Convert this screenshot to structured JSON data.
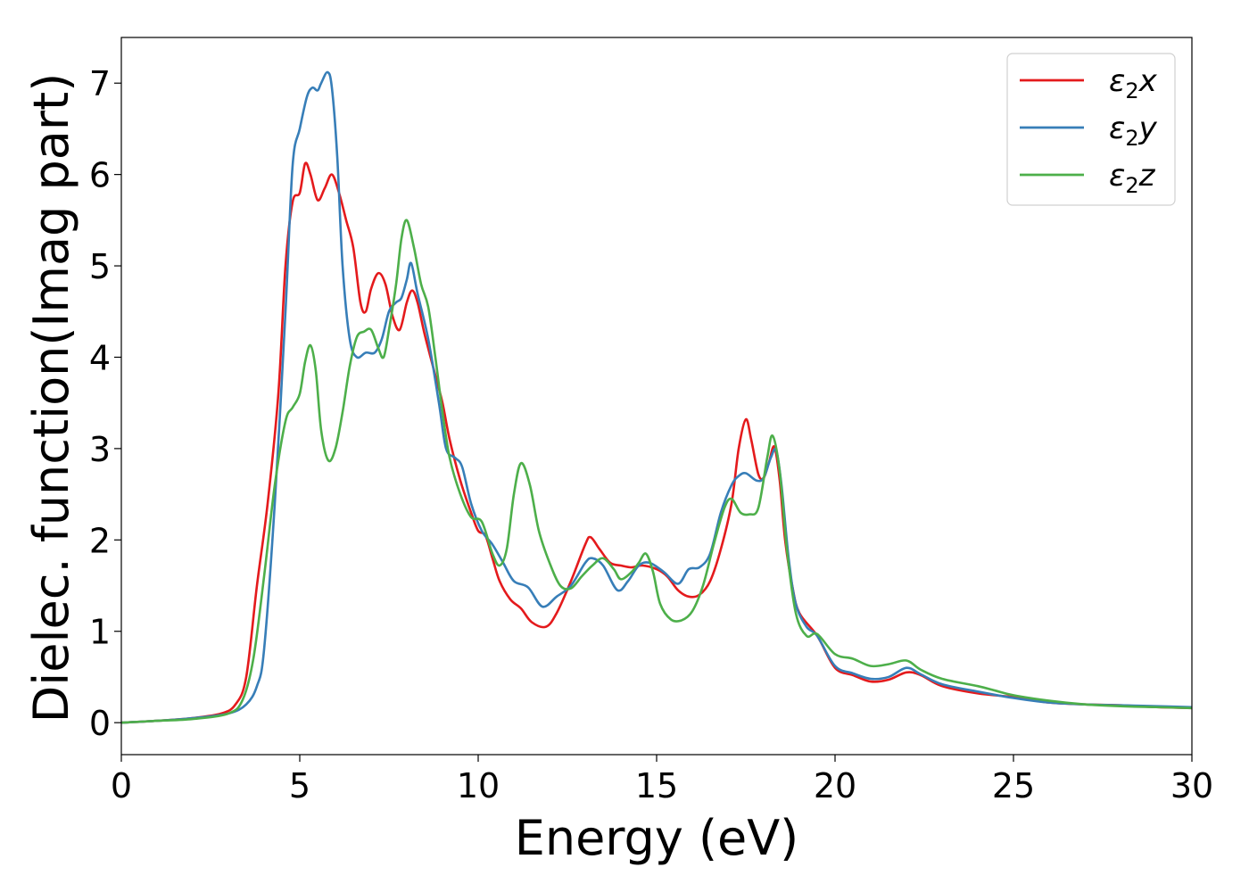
{
  "chart_data": {
    "type": "line",
    "xlabel": "Energy (eV)",
    "ylabel": "Dielec. function(Imag part)",
    "xlim": [
      0,
      30
    ],
    "ylim": [
      -0.35,
      7.5
    ],
    "xticks": [
      0,
      5,
      10,
      15,
      20,
      25,
      30
    ],
    "yticks": [
      0,
      1,
      2,
      3,
      4,
      5,
      6,
      7
    ],
    "grid": false,
    "legend": "top-right",
    "series": [
      {
        "name": "ε₂x",
        "legend": {
          "sym": "ε",
          "sub": "2",
          "var": "x"
        },
        "color": "#e41a1c",
        "points": [
          [
            0,
            0
          ],
          [
            1,
            0.02
          ],
          [
            2,
            0.05
          ],
          [
            2.8,
            0.1
          ],
          [
            3.2,
            0.2
          ],
          [
            3.5,
            0.5
          ],
          [
            3.8,
            1.5
          ],
          [
            4.1,
            2.4
          ],
          [
            4.4,
            3.6
          ],
          [
            4.6,
            5.0
          ],
          [
            4.8,
            5.7
          ],
          [
            5.0,
            5.8
          ],
          [
            5.15,
            6.12
          ],
          [
            5.3,
            6.0
          ],
          [
            5.5,
            5.72
          ],
          [
            5.7,
            5.85
          ],
          [
            5.9,
            6.0
          ],
          [
            6.1,
            5.8
          ],
          [
            6.3,
            5.5
          ],
          [
            6.5,
            5.2
          ],
          [
            6.7,
            4.6
          ],
          [
            6.85,
            4.5
          ],
          [
            7.0,
            4.75
          ],
          [
            7.2,
            4.92
          ],
          [
            7.4,
            4.8
          ],
          [
            7.6,
            4.45
          ],
          [
            7.8,
            4.3
          ],
          [
            8.0,
            4.6
          ],
          [
            8.15,
            4.73
          ],
          [
            8.3,
            4.6
          ],
          [
            8.5,
            4.25
          ],
          [
            8.8,
            3.8
          ],
          [
            9.0,
            3.5
          ],
          [
            9.2,
            3.1
          ],
          [
            9.5,
            2.65
          ],
          [
            9.8,
            2.3
          ],
          [
            10.0,
            2.1
          ],
          [
            10.2,
            2.05
          ],
          [
            10.4,
            1.8
          ],
          [
            10.6,
            1.55
          ],
          [
            10.9,
            1.35
          ],
          [
            11.2,
            1.25
          ],
          [
            11.5,
            1.1
          ],
          [
            11.9,
            1.05
          ],
          [
            12.2,
            1.2
          ],
          [
            12.6,
            1.55
          ],
          [
            13.0,
            1.95
          ],
          [
            13.15,
            2.03
          ],
          [
            13.4,
            1.9
          ],
          [
            13.7,
            1.75
          ],
          [
            14.0,
            1.72
          ],
          [
            14.3,
            1.7
          ],
          [
            14.6,
            1.72
          ],
          [
            15.0,
            1.68
          ],
          [
            15.3,
            1.6
          ],
          [
            15.6,
            1.45
          ],
          [
            15.9,
            1.38
          ],
          [
            16.2,
            1.4
          ],
          [
            16.5,
            1.55
          ],
          [
            16.8,
            1.9
          ],
          [
            17.1,
            2.4
          ],
          [
            17.3,
            3.0
          ],
          [
            17.5,
            3.32
          ],
          [
            17.65,
            3.1
          ],
          [
            17.85,
            2.72
          ],
          [
            18.0,
            2.68
          ],
          [
            18.15,
            2.85
          ],
          [
            18.3,
            3.02
          ],
          [
            18.45,
            2.65
          ],
          [
            18.6,
            2.0
          ],
          [
            18.8,
            1.5
          ],
          [
            19.0,
            1.2
          ],
          [
            19.5,
            0.95
          ],
          [
            20.0,
            0.6
          ],
          [
            20.5,
            0.52
          ],
          [
            21.0,
            0.45
          ],
          [
            21.5,
            0.47
          ],
          [
            22.0,
            0.55
          ],
          [
            22.4,
            0.52
          ],
          [
            23.0,
            0.4
          ],
          [
            24.0,
            0.32
          ],
          [
            25.0,
            0.28
          ],
          [
            26.0,
            0.22
          ],
          [
            27.0,
            0.2
          ],
          [
            28.0,
            0.19
          ],
          [
            29.0,
            0.17
          ],
          [
            30.0,
            0.16
          ]
        ]
      },
      {
        "name": "ε₂y",
        "legend": {
          "sym": "ε",
          "sub": "2",
          "var": "y"
        },
        "color": "#377eb8",
        "points": [
          [
            0,
            0
          ],
          [
            1,
            0.02
          ],
          [
            2,
            0.05
          ],
          [
            3.0,
            0.1
          ],
          [
            3.5,
            0.2
          ],
          [
            3.8,
            0.4
          ],
          [
            4.0,
            0.8
          ],
          [
            4.3,
            2.4
          ],
          [
            4.6,
            4.5
          ],
          [
            4.8,
            6.1
          ],
          [
            5.0,
            6.5
          ],
          [
            5.2,
            6.85
          ],
          [
            5.35,
            6.95
          ],
          [
            5.5,
            6.92
          ],
          [
            5.6,
            7.0
          ],
          [
            5.78,
            7.12
          ],
          [
            5.9,
            6.95
          ],
          [
            6.05,
            6.2
          ],
          [
            6.2,
            5.0
          ],
          [
            6.4,
            4.2
          ],
          [
            6.6,
            4.0
          ],
          [
            6.85,
            4.05
          ],
          [
            7.1,
            4.05
          ],
          [
            7.3,
            4.2
          ],
          [
            7.5,
            4.5
          ],
          [
            7.7,
            4.6
          ],
          [
            7.85,
            4.65
          ],
          [
            8.0,
            4.85
          ],
          [
            8.12,
            5.03
          ],
          [
            8.3,
            4.7
          ],
          [
            8.6,
            4.2
          ],
          [
            8.9,
            3.5
          ],
          [
            9.1,
            3.0
          ],
          [
            9.35,
            2.9
          ],
          [
            9.55,
            2.8
          ],
          [
            9.8,
            2.4
          ],
          [
            10.1,
            2.1
          ],
          [
            10.4,
            1.95
          ],
          [
            10.7,
            1.75
          ],
          [
            11.0,
            1.55
          ],
          [
            11.4,
            1.48
          ],
          [
            11.8,
            1.27
          ],
          [
            12.2,
            1.38
          ],
          [
            12.6,
            1.5
          ],
          [
            13.0,
            1.75
          ],
          [
            13.2,
            1.8
          ],
          [
            13.5,
            1.72
          ],
          [
            13.9,
            1.45
          ],
          [
            14.2,
            1.55
          ],
          [
            14.5,
            1.72
          ],
          [
            14.8,
            1.75
          ],
          [
            15.2,
            1.65
          ],
          [
            15.6,
            1.52
          ],
          [
            15.9,
            1.68
          ],
          [
            16.2,
            1.7
          ],
          [
            16.5,
            1.85
          ],
          [
            16.8,
            2.3
          ],
          [
            17.1,
            2.6
          ],
          [
            17.3,
            2.7
          ],
          [
            17.5,
            2.73
          ],
          [
            17.8,
            2.65
          ],
          [
            18.0,
            2.68
          ],
          [
            18.2,
            2.9
          ],
          [
            18.35,
            2.98
          ],
          [
            18.5,
            2.6
          ],
          [
            18.7,
            1.8
          ],
          [
            18.9,
            1.3
          ],
          [
            19.2,
            1.05
          ],
          [
            19.5,
            0.95
          ],
          [
            20.0,
            0.62
          ],
          [
            20.5,
            0.54
          ],
          [
            21.0,
            0.48
          ],
          [
            21.5,
            0.5
          ],
          [
            22.0,
            0.6
          ],
          [
            22.4,
            0.53
          ],
          [
            23.0,
            0.42
          ],
          [
            24.0,
            0.34
          ],
          [
            25.0,
            0.27
          ],
          [
            26.0,
            0.22
          ],
          [
            27.0,
            0.2
          ],
          [
            28.0,
            0.19
          ],
          [
            29.0,
            0.18
          ],
          [
            30.0,
            0.17
          ]
        ]
      },
      {
        "name": "ε₂z",
        "legend": {
          "sym": "ε",
          "sub": "2",
          "var": "z"
        },
        "color": "#4daf4a",
        "points": [
          [
            0,
            0
          ],
          [
            1,
            0.02
          ],
          [
            2,
            0.04
          ],
          [
            3.0,
            0.1
          ],
          [
            3.4,
            0.25
          ],
          [
            3.7,
            0.7
          ],
          [
            4.0,
            1.6
          ],
          [
            4.3,
            2.6
          ],
          [
            4.6,
            3.3
          ],
          [
            4.8,
            3.45
          ],
          [
            5.0,
            3.6
          ],
          [
            5.15,
            3.95
          ],
          [
            5.3,
            4.13
          ],
          [
            5.45,
            3.85
          ],
          [
            5.6,
            3.2
          ],
          [
            5.8,
            2.87
          ],
          [
            6.0,
            3.0
          ],
          [
            6.2,
            3.4
          ],
          [
            6.4,
            3.9
          ],
          [
            6.6,
            4.22
          ],
          [
            6.8,
            4.28
          ],
          [
            7.0,
            4.3
          ],
          [
            7.2,
            4.1
          ],
          [
            7.35,
            4.0
          ],
          [
            7.5,
            4.3
          ],
          [
            7.7,
            4.8
          ],
          [
            7.85,
            5.3
          ],
          [
            8.0,
            5.5
          ],
          [
            8.2,
            5.2
          ],
          [
            8.4,
            4.8
          ],
          [
            8.6,
            4.55
          ],
          [
            8.8,
            4.0
          ],
          [
            9.0,
            3.4
          ],
          [
            9.2,
            2.9
          ],
          [
            9.5,
            2.5
          ],
          [
            9.8,
            2.25
          ],
          [
            10.1,
            2.2
          ],
          [
            10.4,
            1.85
          ],
          [
            10.6,
            1.72
          ],
          [
            10.8,
            1.9
          ],
          [
            11.0,
            2.5
          ],
          [
            11.2,
            2.84
          ],
          [
            11.45,
            2.6
          ],
          [
            11.7,
            2.1
          ],
          [
            12.0,
            1.75
          ],
          [
            12.3,
            1.5
          ],
          [
            12.6,
            1.47
          ],
          [
            12.9,
            1.6
          ],
          [
            13.2,
            1.72
          ],
          [
            13.5,
            1.8
          ],
          [
            13.8,
            1.68
          ],
          [
            14.0,
            1.57
          ],
          [
            14.3,
            1.65
          ],
          [
            14.5,
            1.75
          ],
          [
            14.7,
            1.85
          ],
          [
            14.9,
            1.65
          ],
          [
            15.1,
            1.3
          ],
          [
            15.4,
            1.13
          ],
          [
            15.7,
            1.12
          ],
          [
            16.0,
            1.22
          ],
          [
            16.3,
            1.5
          ],
          [
            16.6,
            1.95
          ],
          [
            16.9,
            2.35
          ],
          [
            17.1,
            2.45
          ],
          [
            17.35,
            2.3
          ],
          [
            17.6,
            2.28
          ],
          [
            17.85,
            2.35
          ],
          [
            18.1,
            2.9
          ],
          [
            18.25,
            3.14
          ],
          [
            18.45,
            2.75
          ],
          [
            18.65,
            1.9
          ],
          [
            18.9,
            1.2
          ],
          [
            19.2,
            0.95
          ],
          [
            19.5,
            0.97
          ],
          [
            20.0,
            0.75
          ],
          [
            20.5,
            0.7
          ],
          [
            21.0,
            0.62
          ],
          [
            21.5,
            0.64
          ],
          [
            22.0,
            0.68
          ],
          [
            22.4,
            0.58
          ],
          [
            23.0,
            0.48
          ],
          [
            24.0,
            0.4
          ],
          [
            24.5,
            0.35
          ],
          [
            25.0,
            0.3
          ],
          [
            26.0,
            0.24
          ],
          [
            27.0,
            0.2
          ],
          [
            28.0,
            0.18
          ],
          [
            29.0,
            0.17
          ],
          [
            30.0,
            0.16
          ]
        ]
      }
    ]
  }
}
